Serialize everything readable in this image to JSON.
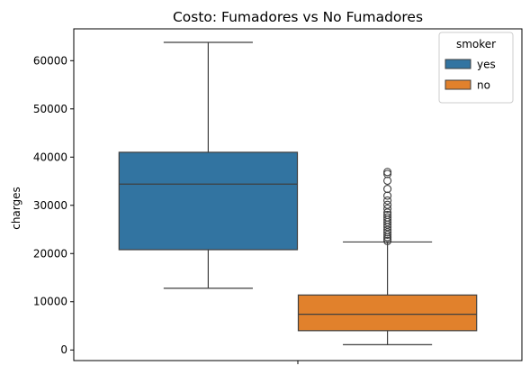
{
  "chart_data": {
    "type": "box",
    "title": "Costo: Fumadores vs No Fumadores",
    "xlabel": "",
    "ylabel": "charges",
    "ylim": [
      -2200,
      66600
    ],
    "yticks": [
      0,
      10000,
      20000,
      30000,
      40000,
      50000,
      60000
    ],
    "x_tick_count": 1,
    "grid": false,
    "legend": {
      "title": "smoker",
      "placement": "top-right",
      "entries": [
        "yes",
        "no"
      ]
    },
    "series": [
      {
        "name": "yes",
        "color": "#3274a1",
        "q1": 20800,
        "median": 34400,
        "q3": 41000,
        "whisker_low": 12800,
        "whisker_high": 63800,
        "outliers": []
      },
      {
        "name": "no",
        "color": "#e1812c",
        "q1": 4000,
        "median": 7400,
        "q3": 11400,
        "whisker_low": 1100,
        "whisker_high": 22400,
        "outliers": [
          22600,
          23000,
          23400,
          23900,
          24400,
          24900,
          25500,
          26000,
          26500,
          27000,
          27500,
          28000,
          28500,
          29300,
          30100,
          31000,
          32000,
          33400,
          35100,
          36500,
          36900
        ]
      }
    ]
  }
}
